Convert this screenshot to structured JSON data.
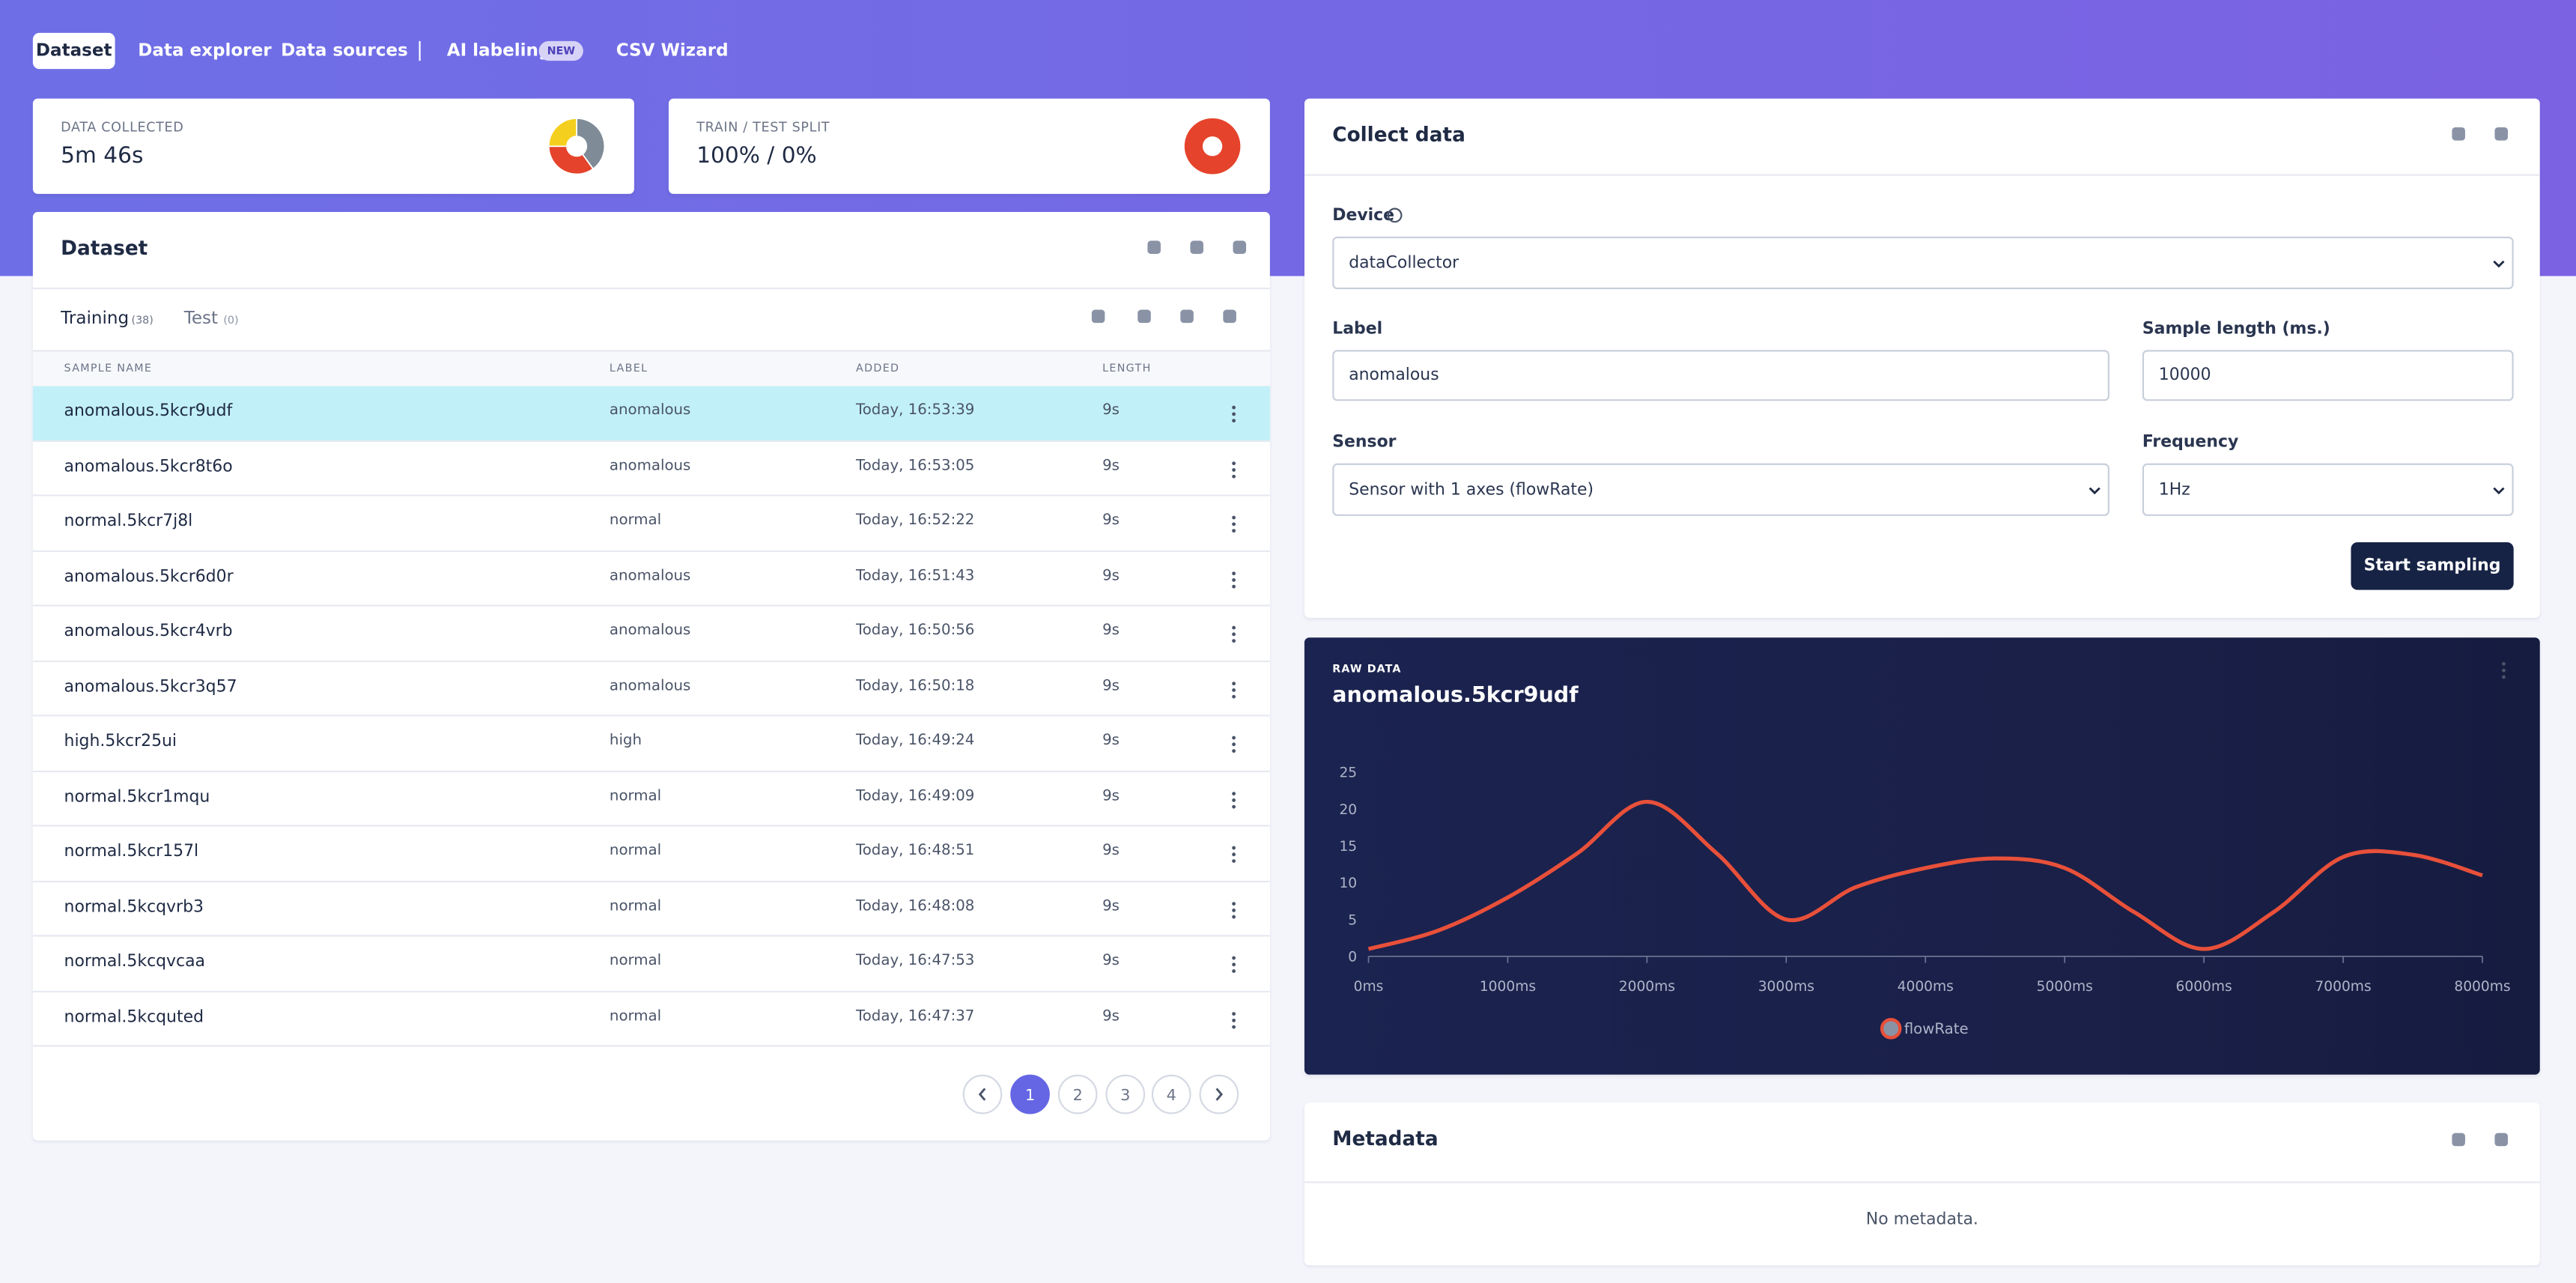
{
  "nav": {
    "tabs": [
      "Dataset",
      "Data explorer",
      "Data sources",
      "AI labeling",
      "CSV Wizard"
    ],
    "badge": "NEW"
  },
  "summary": [
    {
      "label": "DATA COLLECTED",
      "value": "5m 46s"
    },
    {
      "label": "TRAIN / TEST SPLIT",
      "value": "100% / 0%"
    }
  ],
  "donuts": [
    {
      "values": [
        40,
        35,
        25
      ],
      "colors": [
        "#7f8c97",
        "#e5432b",
        "#f5cf1d"
      ]
    },
    {
      "values": [
        100
      ],
      "colors": [
        "#e5432b"
      ]
    }
  ],
  "dataset": {
    "title": "Dataset",
    "tabs": [
      {
        "name": "Training",
        "count": "(38)"
      },
      {
        "name": "Test",
        "count": "(0)"
      }
    ],
    "columns": [
      "SAMPLE NAME",
      "LABEL",
      "ADDED",
      "LENGTH"
    ],
    "rows": [
      [
        "anomalous.5kcr9udf",
        "anomalous",
        "Today, 16:53:39",
        "9s"
      ],
      [
        "anomalous.5kcr8t6o",
        "anomalous",
        "Today, 16:53:05",
        "9s"
      ],
      [
        "normal.5kcr7j8l",
        "normal",
        "Today, 16:52:22",
        "9s"
      ],
      [
        "anomalous.5kcr6d0r",
        "anomalous",
        "Today, 16:51:43",
        "9s"
      ],
      [
        "anomalous.5kcr4vrb",
        "anomalous",
        "Today, 16:50:56",
        "9s"
      ],
      [
        "anomalous.5kcr3q57",
        "anomalous",
        "Today, 16:50:18",
        "9s"
      ],
      [
        "high.5kcr25ui",
        "high",
        "Today, 16:49:24",
        "9s"
      ],
      [
        "normal.5kcr1mqu",
        "normal",
        "Today, 16:49:09",
        "9s"
      ],
      [
        "normal.5kcr157l",
        "normal",
        "Today, 16:48:51",
        "9s"
      ],
      [
        "normal.5kcqvrb3",
        "normal",
        "Today, 16:48:08",
        "9s"
      ],
      [
        "normal.5kcqvcaa",
        "normal",
        "Today, 16:47:53",
        "9s"
      ],
      [
        "normal.5kcquted",
        "normal",
        "Today, 16:47:37",
        "9s"
      ]
    ],
    "pages": [
      "1",
      "2",
      "3",
      "4"
    ]
  },
  "collect": {
    "title": "Collect data",
    "device_label": "Device",
    "device": "dataCollector",
    "label_label": "Label",
    "label": "anomalous",
    "length_label": "Sample length (ms.)",
    "length": "10000",
    "sensor_label": "Sensor",
    "sensor": "Sensor with 1 axes (flowRate)",
    "freq_label": "Frequency",
    "freq": "1Hz",
    "button": "Start sampling"
  },
  "chart_data": {
    "type": "line",
    "subtitle": "RAW DATA",
    "title": "anomalous.5kcr9udf",
    "x": [
      0,
      500,
      1000,
      1500,
      2000,
      2500,
      3000,
      3500,
      4000,
      4500,
      5000,
      5500,
      6000,
      6500,
      7000,
      7500,
      8000
    ],
    "series": [
      {
        "name": "flowRate",
        "color": "#e8503a",
        "values": [
          1,
          3.5,
          8,
          14,
          21,
          14,
          5,
          9.4,
          12,
          13.3,
          12,
          6,
          1,
          6,
          13.5,
          13.8,
          11
        ]
      }
    ],
    "xlim": [
      0,
      8000
    ],
    "xticks": [
      {
        "value": 0,
        "label": "0ms"
      },
      {
        "value": 1000,
        "label": "1000ms"
      },
      {
        "value": 2000,
        "label": "2000ms"
      },
      {
        "value": 3000,
        "label": "3000ms"
      },
      {
        "value": 4000,
        "label": "4000ms"
      },
      {
        "value": 5000,
        "label": "5000ms"
      },
      {
        "value": 6000,
        "label": "6000ms"
      },
      {
        "value": 7000,
        "label": "7000ms"
      },
      {
        "value": 8000,
        "label": "8000ms"
      }
    ],
    "ylim": [
      0,
      25
    ],
    "yticks": [
      0,
      5,
      10,
      15,
      20,
      25
    ]
  },
  "metadata": {
    "title": "Metadata",
    "empty": "No metadata."
  }
}
